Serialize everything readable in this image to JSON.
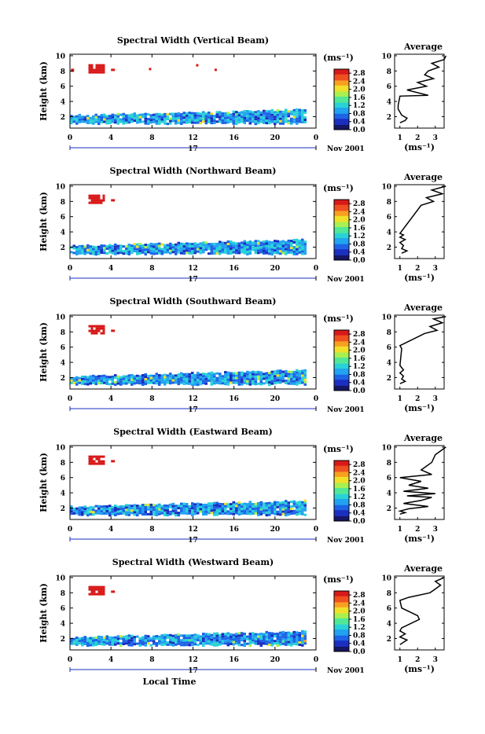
{
  "xlabel_bottom": "Local Time",
  "date_day": "17",
  "date_suffix": "Nov 2001",
  "panels": [
    {
      "title": "Spectral Width (Vertical Beam)",
      "profile": "vertical"
    },
    {
      "title": "Spectral Width (Northward Beam)",
      "profile": "north"
    },
    {
      "title": "Spectral Width (Southward Beam)",
      "profile": "south"
    },
    {
      "title": "Spectral Width (Eastward Beam)",
      "profile": "east"
    },
    {
      "title": "Spectral Width (Westward Beam)",
      "profile": "west"
    }
  ],
  "ylabel": "Height (km)",
  "unit_label": "(ms⁻¹)",
  "avg_title": "Average",
  "avg_unit": "(ms⁻¹)",
  "chart_data": {
    "type": "heatmap",
    "x_ticks": [
      "0",
      "4",
      "8",
      "12",
      "16",
      "20",
      "0"
    ],
    "xlim": [
      0,
      24
    ],
    "y_ticks": [
      "2",
      "4",
      "6",
      "8",
      "10"
    ],
    "ylim": [
      0.5,
      10.2
    ],
    "colorbar_ticks": [
      "0.0",
      "0.4",
      "0.8",
      "1.2",
      "1.6",
      "2.0",
      "2.4",
      "2.8"
    ],
    "colorbar_range": [
      0.0,
      3.0
    ],
    "avg_x_ticks": [
      "1",
      "2",
      "3"
    ],
    "avg_xlim": [
      0.7,
      3.5
    ],
    "avg_ylim": [
      0.5,
      10.2
    ],
    "colors": [
      "#141462",
      "#1a2ec0",
      "#1d62e6",
      "#20a2f0",
      "#28d2d6",
      "#50e896",
      "#a8f050",
      "#f0e028",
      "#f8a020",
      "#f05020",
      "#d81818"
    ],
    "background_rain_layer": {
      "x_range": [
        0,
        23
      ],
      "top_height_start": 2.2,
      "top_height_end": 3.0,
      "bottom_height": 1.2,
      "dominant_value": 0.9
    },
    "upper_patch": {
      "x_range": [
        1.8,
        3.2
      ],
      "height_range": [
        7.9,
        8.9
      ],
      "value": 3.0
    },
    "average_profiles": {
      "vertical": {
        "heights": [
          1.2,
          1.5,
          1.8,
          2.2,
          2.6,
          3.0,
          3.5,
          4.7,
          4.8,
          5.5,
          6.0,
          6.5,
          7.0,
          7.5,
          8.0,
          8.5,
          9.0,
          9.5,
          10.0
        ],
        "values": [
          1.0,
          1.3,
          1.4,
          1.1,
          1.0,
          0.9,
          0.9,
          1.0,
          2.6,
          1.4,
          2.5,
          2.0,
          2.9,
          2.4,
          2.6,
          3.2,
          2.8,
          3.5,
          3.6
        ]
      },
      "north": {
        "heights": [
          1.2,
          1.5,
          1.8,
          2.2,
          2.6,
          3.0,
          3.3,
          3.6,
          3.8,
          7.5,
          8.0,
          8.5,
          9.0,
          9.5,
          10.0
        ],
        "values": [
          1.1,
          1.4,
          1.1,
          1.2,
          1.0,
          1.3,
          1.0,
          1.2,
          1.0,
          2.2,
          2.9,
          2.5,
          3.4,
          2.8,
          3.6
        ]
      },
      "south": {
        "heights": [
          1.2,
          1.5,
          1.8,
          2.2,
          2.6,
          3.0,
          3.3,
          3.6,
          5.8,
          6.2,
          7.8,
          8.2,
          8.7,
          9.2,
          9.7,
          10.0
        ],
        "values": [
          1.0,
          1.3,
          1.1,
          1.2,
          1.0,
          1.2,
          1.1,
          1.0,
          1.1,
          1.0,
          2.4,
          3.1,
          2.7,
          3.4,
          2.9,
          3.6
        ]
      },
      "east": {
        "heights": [
          1.2,
          1.4,
          1.6,
          1.9,
          2.2,
          2.6,
          3.0,
          3.4,
          3.6,
          3.9,
          4.2,
          4.6,
          5.0,
          5.5,
          6.0,
          6.4,
          7.0,
          8.0,
          9.0,
          10.0
        ],
        "values": [
          1.0,
          1.3,
          1.0,
          1.5,
          2.6,
          1.2,
          2.2,
          2.8,
          1.4,
          3.0,
          1.2,
          2.6,
          1.5,
          2.2,
          1.0,
          2.8,
          2.2,
          2.8,
          3.0,
          3.6
        ]
      },
      "west": {
        "heights": [
          1.2,
          1.5,
          1.8,
          2.2,
          2.6,
          3.0,
          3.4,
          4.5,
          5.0,
          6.0,
          7.0,
          7.4,
          8.0,
          8.5,
          9.0,
          9.5,
          10.0
        ],
        "values": [
          1.0,
          1.2,
          1.4,
          1.0,
          1.3,
          1.0,
          1.1,
          2.1,
          2.0,
          1.1,
          1.0,
          1.5,
          2.7,
          3.0,
          3.3,
          3.0,
          3.5
        ]
      }
    }
  }
}
